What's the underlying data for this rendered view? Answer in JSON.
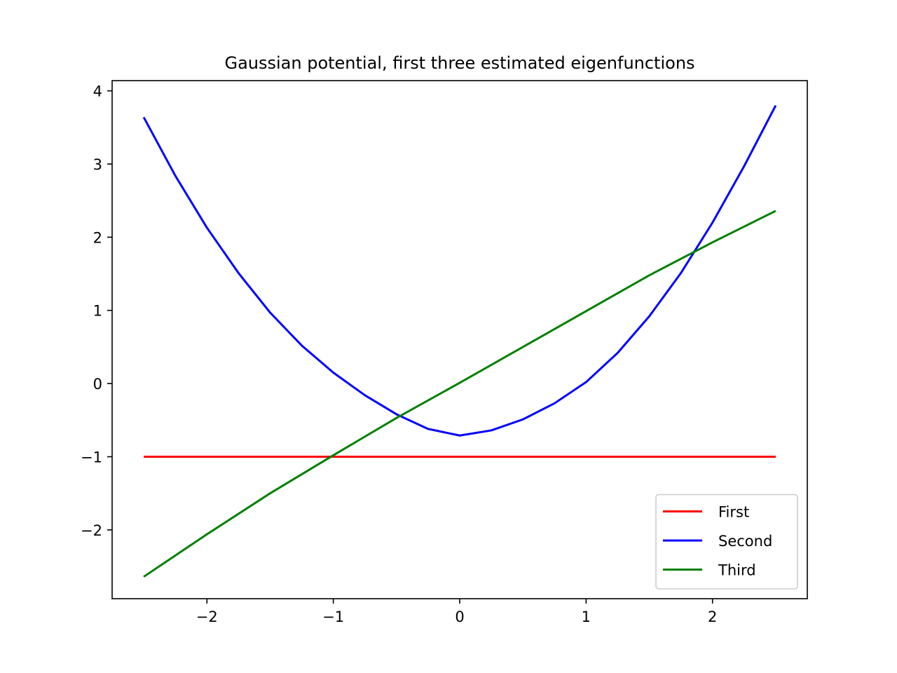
{
  "chart_data": {
    "type": "line",
    "title": "Gaussian potential, first three estimated eigenfunctions",
    "xlabel": "",
    "ylabel": "",
    "xlim": [
      -2.75,
      2.75
    ],
    "ylim": [
      -2.94,
      4.14
    ],
    "x_ticks": [
      -2,
      -1,
      0,
      1,
      2
    ],
    "y_ticks": [
      -2,
      -1,
      0,
      1,
      2,
      3,
      4
    ],
    "x_tick_labels": [
      "−2",
      "−1",
      "0",
      "1",
      "2"
    ],
    "y_tick_labels": [
      "−2",
      "−1",
      "0",
      "1",
      "2",
      "3",
      "4"
    ],
    "grid": false,
    "legend_position": "lower-right",
    "series": [
      {
        "name": "First",
        "color": "#ff0000",
        "x": [
          -2.5,
          -2.0,
          -1.5,
          -1.0,
          -0.5,
          0.0,
          0.5,
          1.0,
          1.5,
          2.0,
          2.5
        ],
        "y": [
          -1.0,
          -1.0,
          -1.0,
          -1.0,
          -1.0,
          -1.0,
          -1.0,
          -1.0,
          -1.0,
          -1.0,
          -1.0
        ]
      },
      {
        "name": "Second",
        "color": "#0000ff",
        "x": [
          -2.5,
          -2.25,
          -2.0,
          -1.75,
          -1.5,
          -1.25,
          -1.0,
          -0.75,
          -0.5,
          -0.25,
          0.0,
          0.25,
          0.5,
          0.75,
          1.0,
          1.25,
          1.5,
          1.75,
          2.0,
          2.25,
          2.5
        ],
        "y": [
          3.64,
          2.84,
          2.13,
          1.51,
          0.97,
          0.52,
          0.15,
          -0.16,
          -0.42,
          -0.62,
          -0.71,
          -0.64,
          -0.49,
          -0.27,
          0.02,
          0.42,
          0.92,
          1.51,
          2.2,
          2.97,
          3.8
        ]
      },
      {
        "name": "Third",
        "color": "#008000",
        "x": [
          -2.5,
          -2.0,
          -1.5,
          -1.0,
          -0.5,
          0.0,
          0.5,
          1.0,
          1.5,
          2.0,
          2.5
        ],
        "y": [
          -2.64,
          -2.06,
          -1.5,
          -0.98,
          -0.47,
          0.01,
          0.5,
          0.99,
          1.48,
          1.93,
          2.36
        ]
      }
    ]
  }
}
